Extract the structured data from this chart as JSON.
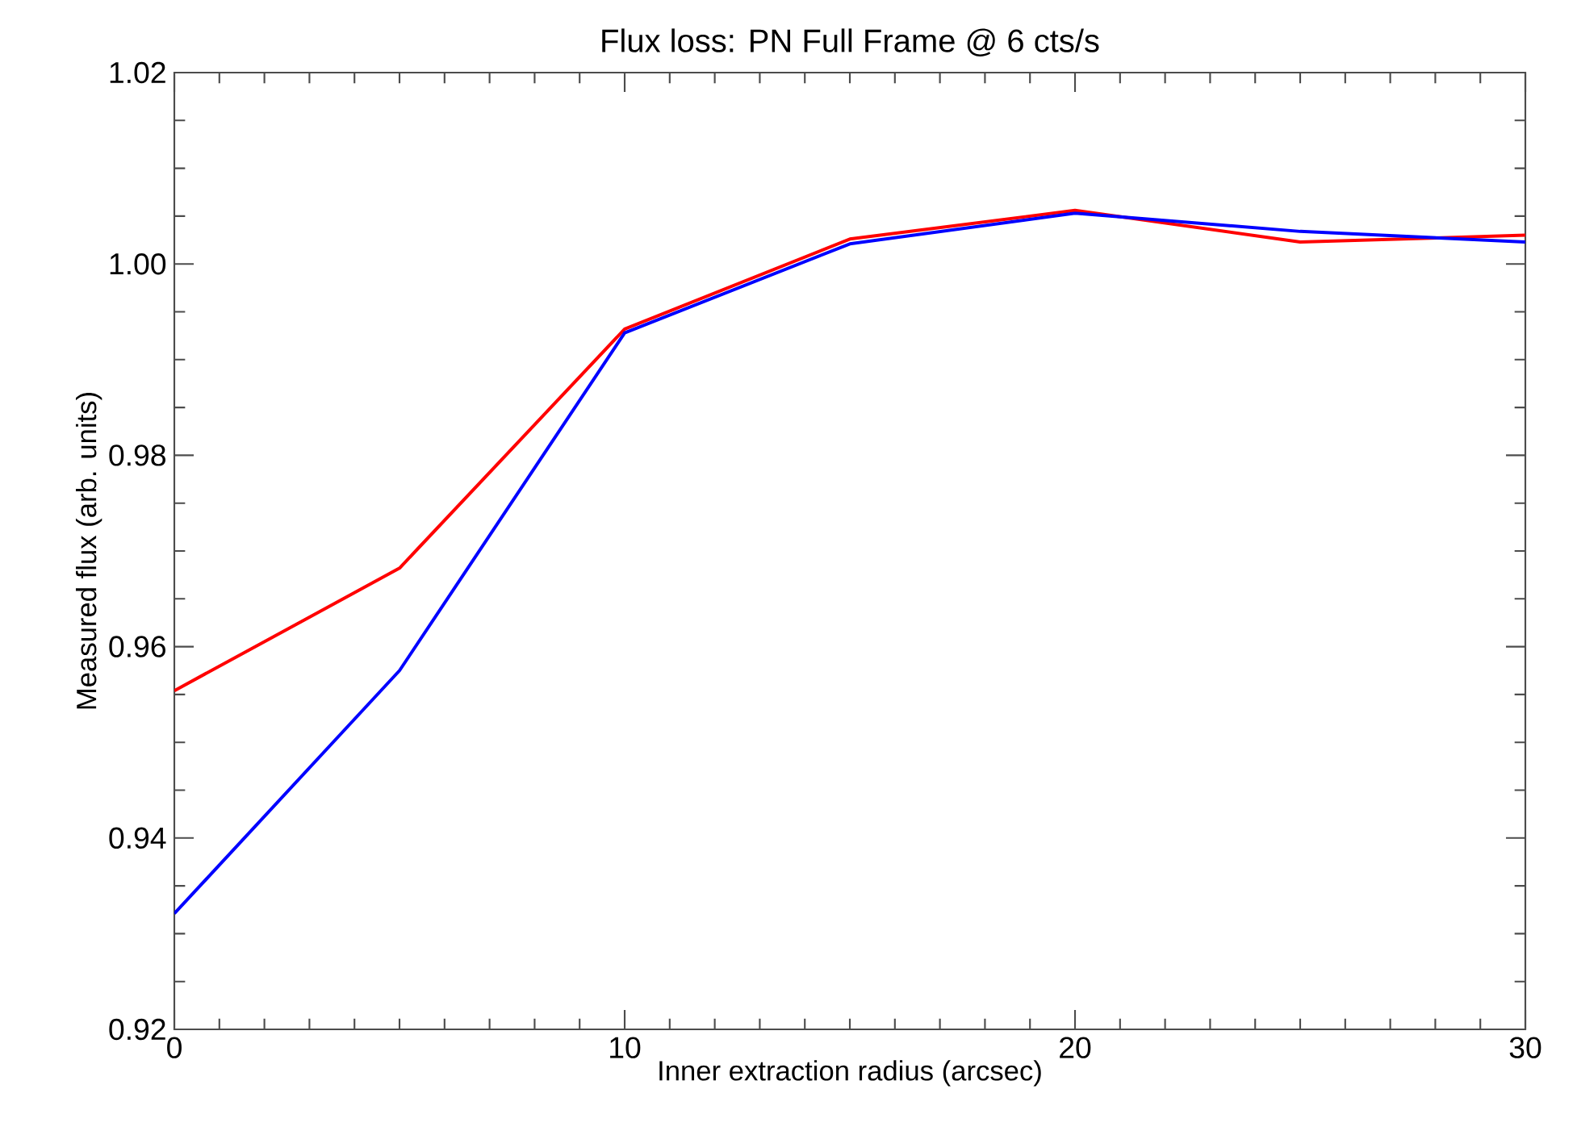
{
  "chart_data": {
    "type": "line",
    "title": "Flux loss: PN Full Frame @ 6 cts/s",
    "xlabel": "Inner extraction radius (arcsec)",
    "ylabel": "Measured flux (arb. units)",
    "x": [
      0,
      5,
      10,
      15,
      20,
      25,
      30
    ],
    "series": [
      {
        "color": "#ff0000",
        "values": [
          0.9554,
          0.9682,
          0.9932,
          1.0026,
          1.0056,
          1.0023,
          1.003
        ]
      },
      {
        "color": "#0000ff",
        "values": [
          0.9321,
          0.9575,
          0.9928,
          1.0021,
          1.0053,
          1.0034,
          1.0023
        ]
      }
    ],
    "xlim": [
      0,
      30
    ],
    "xticks": [
      0,
      10,
      20,
      30
    ],
    "ylim": [
      0.92,
      1.02
    ],
    "yticks": [
      0.92,
      0.94,
      0.96,
      0.98,
      {
        "value": 1.0,
        "label": "1.00"
      },
      1.02
    ]
  }
}
